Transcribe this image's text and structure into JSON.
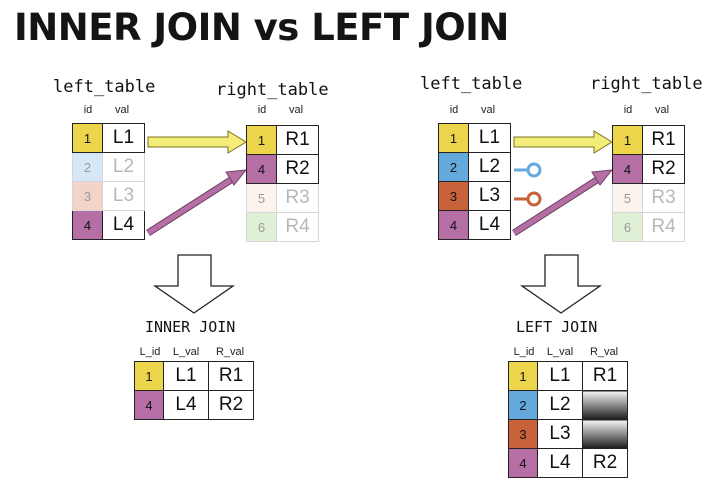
{
  "title": "INNER JOIN vs LEFT JOIN",
  "colors": {
    "yellow": "#ecd54b",
    "blue": "#64a9dc",
    "orange": "#c8623b",
    "purple": "#b56fa4",
    "yellow_light": "#f9f1c1",
    "blue_light": "#d6e8f6",
    "orange_light": "#f2d4c8",
    "purple_light": "#f4e6f0",
    "green_light": "#e0f0d6",
    "arrow_yellow": "#f4ec78",
    "arrow_purple": "#b56fa4"
  },
  "left_panel": {
    "left_table": {
      "name": "left_table",
      "headers": [
        "id",
        "val"
      ],
      "rows": [
        {
          "id": "1",
          "val": "L1"
        },
        {
          "id": "2",
          "val": "L2"
        },
        {
          "id": "3",
          "val": "L3"
        },
        {
          "id": "4",
          "val": "L4"
        }
      ]
    },
    "right_table": {
      "name": "right_table",
      "headers": [
        "id",
        "val"
      ],
      "rows": [
        {
          "id": "1",
          "val": "R1"
        },
        {
          "id": "4",
          "val": "R2"
        },
        {
          "id": "5",
          "val": "R3"
        },
        {
          "id": "6",
          "val": "R4"
        }
      ]
    },
    "result_label": "INNER JOIN",
    "result": {
      "headers": [
        "L_id",
        "L_val",
        "R_val"
      ],
      "rows": [
        {
          "l_id": "1",
          "l_val": "L1",
          "r_val": "R1"
        },
        {
          "l_id": "4",
          "l_val": "L4",
          "r_val": "R2"
        }
      ]
    }
  },
  "right_panel": {
    "left_table": {
      "name": "left_table",
      "headers": [
        "id",
        "val"
      ],
      "rows": [
        {
          "id": "1",
          "val": "L1"
        },
        {
          "id": "2",
          "val": "L2"
        },
        {
          "id": "3",
          "val": "L3"
        },
        {
          "id": "4",
          "val": "L4"
        }
      ]
    },
    "right_table": {
      "name": "right_table",
      "headers": [
        "id",
        "val"
      ],
      "rows": [
        {
          "id": "1",
          "val": "R1"
        },
        {
          "id": "4",
          "val": "R2"
        },
        {
          "id": "5",
          "val": "R3"
        },
        {
          "id": "6",
          "val": "R4"
        }
      ]
    },
    "result_label": "LEFT JOIN",
    "result": {
      "headers": [
        "L_id",
        "L_val",
        "R_val"
      ],
      "rows": [
        {
          "l_id": "1",
          "l_val": "L1",
          "r_val": "R1"
        },
        {
          "l_id": "2",
          "l_val": "L2",
          "r_val": ""
        },
        {
          "l_id": "3",
          "l_val": "L3",
          "r_val": ""
        },
        {
          "l_id": "4",
          "l_val": "L4",
          "r_val": "R2"
        }
      ]
    }
  }
}
